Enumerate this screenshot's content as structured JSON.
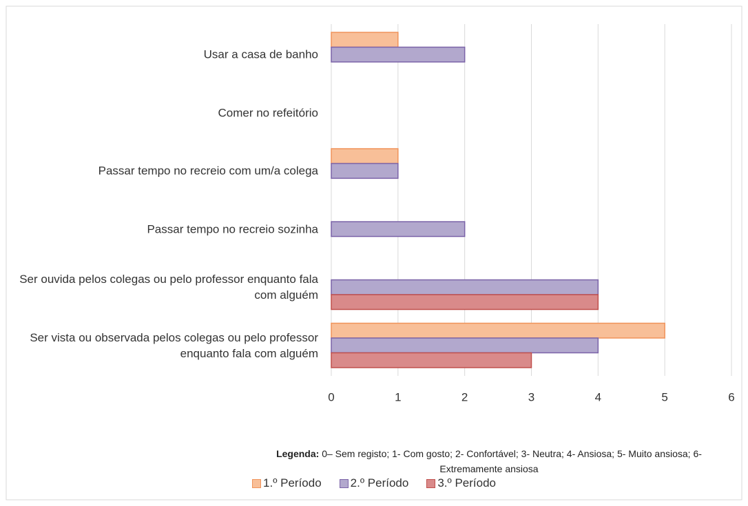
{
  "chart_data": {
    "type": "barh",
    "categories": [
      "Usar a casa de banho",
      "Comer no refeitório",
      "Passar tempo no recreio com um/a colega",
      "Passar tempo no recreio sozinha",
      "Ser ouvida pelos colegas ou pelo professor enquanto fala com alguém",
      "Ser vista ou observada pelos colegas ou pelo professor enquanto fala com alguém"
    ],
    "series": [
      {
        "name": "1.º Período",
        "color": "#f8bf98",
        "values": [
          1,
          0,
          1,
          0,
          0,
          5
        ]
      },
      {
        "name": "2.º Período",
        "color": "#b2a8cd",
        "values": [
          2,
          0,
          1,
          2,
          4,
          4
        ]
      },
      {
        "name": "3.º Período",
        "color": "#d98a8a",
        "values": [
          0,
          0,
          0,
          0,
          4,
          3
        ]
      }
    ],
    "xlim": [
      0,
      6
    ],
    "xticks": [
      0,
      1,
      2,
      3,
      4,
      5,
      6
    ],
    "grid": true,
    "note_label": "Legenda:",
    "note": "0– Sem registo; 1- Com gosto; 2- Confortável; 3- Neutra; 4- Ansiosa; 5- Muito ansiosa; 6- Extremamente ansiosa",
    "legend": "bottom"
  }
}
